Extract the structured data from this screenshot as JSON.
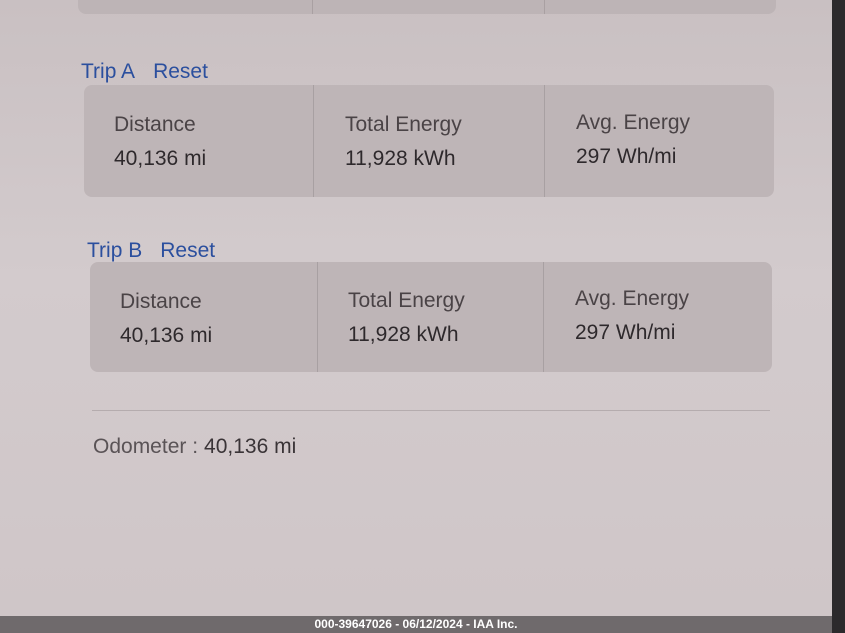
{
  "trips": [
    {
      "title": "Trip A",
      "reset_label": "Reset",
      "stats": [
        {
          "label": "Distance",
          "value": "40,136 mi"
        },
        {
          "label": "Total Energy",
          "value": "11,928 kWh"
        },
        {
          "label": "Avg. Energy",
          "value": "297 Wh/mi"
        }
      ]
    },
    {
      "title": "Trip B",
      "reset_label": "Reset",
      "stats": [
        {
          "label": "Distance",
          "value": "40,136 mi"
        },
        {
          "label": "Total Energy",
          "value": "11,928 kWh"
        },
        {
          "label": "Avg. Energy",
          "value": "297 Wh/mi"
        }
      ]
    }
  ],
  "odometer": {
    "label": "Odometer :",
    "value": "40,136 mi"
  },
  "watermark": "000-39647026 - 06/12/2024 - IAA Inc.",
  "colors": {
    "accent": "#2b4f9e",
    "card": "#beb5b7",
    "background": "#cdc4c6"
  }
}
